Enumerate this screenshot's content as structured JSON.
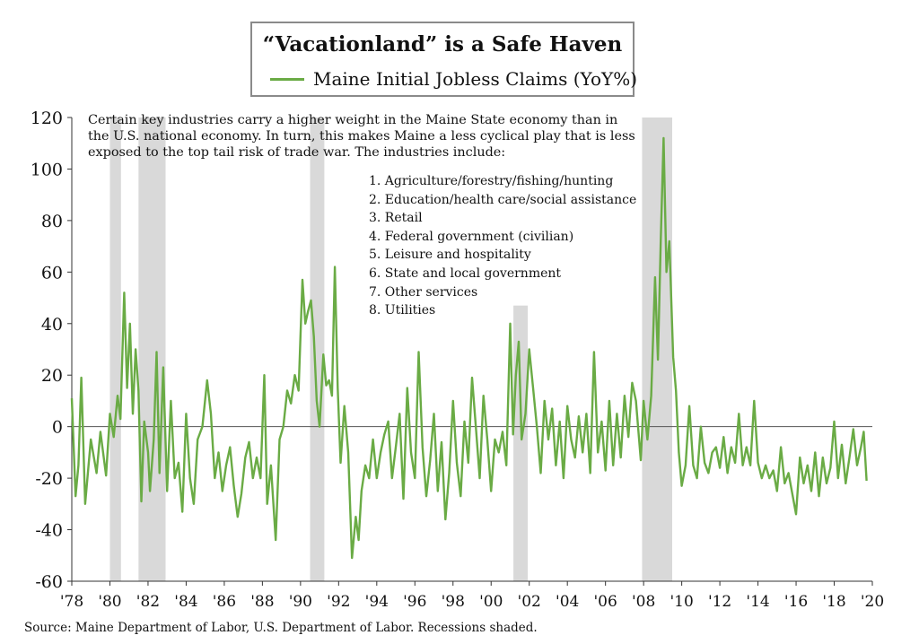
{
  "title": "“Vacationland” is a Safe Haven",
  "note": "Certain key industries carry a higher weight in the Maine State economy than in the U.S. national economy. In turn, this makes Maine a less cyclical play that is less exposed to the top tail risk of trade war.  The industries include:",
  "industries": [
    "1. Agriculture/forestry/fishing/hunting",
    "2. Education/health care/social assistance",
    "3. Retail",
    "4. Federal government (civilian)",
    "5. Leisure and hospitality",
    "6. State and local government",
    "7. Other services",
    "8. Utilities"
  ],
  "source": "Source: Maine Department of Labor, U.S. Department of Labor. Recessions shaded.",
  "colors": {
    "line": "#6aab45",
    "recession": "#d9d9d9",
    "axis": "#555555"
  },
  "chart_data": {
    "type": "line",
    "title": "“Vacationland” is a Safe Haven",
    "xlabel": "",
    "ylabel": "",
    "xlim": [
      1978,
      2020
    ],
    "ylim": [
      -60,
      120
    ],
    "yticks": [
      -60,
      -40,
      -20,
      0,
      20,
      40,
      60,
      80,
      100,
      120
    ],
    "xticks": [
      {
        "value": 1978,
        "label": "'78"
      },
      {
        "value": 1980,
        "label": "'80"
      },
      {
        "value": 1982,
        "label": "'82"
      },
      {
        "value": 1984,
        "label": "'84"
      },
      {
        "value": 1986,
        "label": "'86"
      },
      {
        "value": 1988,
        "label": "'88"
      },
      {
        "value": 1990,
        "label": "'90"
      },
      {
        "value": 1992,
        "label": "'92"
      },
      {
        "value": 1994,
        "label": "'94"
      },
      {
        "value": 1996,
        "label": "'96"
      },
      {
        "value": 1998,
        "label": "'98"
      },
      {
        "value": 2000,
        "label": "'00"
      },
      {
        "value": 2002,
        "label": "'02"
      },
      {
        "value": 2004,
        "label": "'04"
      },
      {
        "value": 2006,
        "label": "'06"
      },
      {
        "value": 2008,
        "label": "'08"
      },
      {
        "value": 2010,
        "label": "'10"
      },
      {
        "value": 2012,
        "label": "'12"
      },
      {
        "value": 2014,
        "label": "'14"
      },
      {
        "value": 2016,
        "label": "'16"
      },
      {
        "value": 2018,
        "label": "'18"
      },
      {
        "value": 2020,
        "label": "'20"
      }
    ],
    "recessions": [
      {
        "start": 1980.0,
        "end": 1980.58,
        "top": 120
      },
      {
        "start": 1981.5,
        "end": 1982.92,
        "top": 120
      },
      {
        "start": 1990.5,
        "end": 1991.25,
        "top": 120
      },
      {
        "start": 2001.17,
        "end": 2001.92,
        "top": 47
      },
      {
        "start": 2007.92,
        "end": 2009.5,
        "top": 120
      }
    ],
    "series": [
      {
        "name": "Maine Initial Jobless Claims (YoY%)",
        "points": [
          [
            1978.0,
            11
          ],
          [
            1978.2,
            -27
          ],
          [
            1978.35,
            -15
          ],
          [
            1978.5,
            19
          ],
          [
            1978.7,
            -30
          ],
          [
            1979.0,
            -5
          ],
          [
            1979.3,
            -18
          ],
          [
            1979.5,
            -2
          ],
          [
            1979.8,
            -19
          ],
          [
            1980.0,
            5
          ],
          [
            1980.2,
            -4
          ],
          [
            1980.4,
            12
          ],
          [
            1980.55,
            3
          ],
          [
            1980.75,
            52
          ],
          [
            1980.9,
            15
          ],
          [
            1981.05,
            40
          ],
          [
            1981.2,
            5
          ],
          [
            1981.35,
            30
          ],
          [
            1981.5,
            14
          ],
          [
            1981.65,
            -29
          ],
          [
            1981.8,
            2
          ],
          [
            1982.0,
            -10
          ],
          [
            1982.1,
            -25
          ],
          [
            1982.3,
            -5
          ],
          [
            1982.45,
            29
          ],
          [
            1982.6,
            -18
          ],
          [
            1982.8,
            23
          ],
          [
            1983.0,
            -25
          ],
          [
            1983.2,
            10
          ],
          [
            1983.4,
            -20
          ],
          [
            1983.6,
            -14
          ],
          [
            1983.8,
            -33
          ],
          [
            1984.0,
            5
          ],
          [
            1984.2,
            -20
          ],
          [
            1984.4,
            -30
          ],
          [
            1984.6,
            -5
          ],
          [
            1984.85,
            0
          ],
          [
            1985.1,
            18
          ],
          [
            1985.3,
            5
          ],
          [
            1985.5,
            -20
          ],
          [
            1985.7,
            -10
          ],
          [
            1985.9,
            -25
          ],
          [
            1986.1,
            -15
          ],
          [
            1986.3,
            -8
          ],
          [
            1986.5,
            -23
          ],
          [
            1986.7,
            -35
          ],
          [
            1986.9,
            -26
          ],
          [
            1987.1,
            -12
          ],
          [
            1987.3,
            -6
          ],
          [
            1987.5,
            -20
          ],
          [
            1987.7,
            -12
          ],
          [
            1987.9,
            -20
          ],
          [
            1988.1,
            20
          ],
          [
            1988.25,
            -30
          ],
          [
            1988.45,
            -15
          ],
          [
            1988.7,
            -44
          ],
          [
            1988.9,
            -5
          ],
          [
            1989.1,
            0
          ],
          [
            1989.3,
            14
          ],
          [
            1989.5,
            9
          ],
          [
            1989.7,
            20
          ],
          [
            1989.9,
            14
          ],
          [
            1990.1,
            57
          ],
          [
            1990.25,
            40
          ],
          [
            1990.4,
            45
          ],
          [
            1990.55,
            49
          ],
          [
            1990.7,
            35
          ],
          [
            1990.85,
            10
          ],
          [
            1991.0,
            0
          ],
          [
            1991.2,
            28
          ],
          [
            1991.35,
            16
          ],
          [
            1991.5,
            18
          ],
          [
            1991.65,
            12
          ],
          [
            1991.8,
            62
          ],
          [
            1991.95,
            15
          ],
          [
            1992.1,
            -14
          ],
          [
            1992.3,
            8
          ],
          [
            1992.5,
            -10
          ],
          [
            1992.7,
            -51
          ],
          [
            1992.9,
            -35
          ],
          [
            1993.05,
            -44
          ],
          [
            1993.2,
            -25
          ],
          [
            1993.4,
            -15
          ],
          [
            1993.6,
            -20
          ],
          [
            1993.8,
            -5
          ],
          [
            1994.0,
            -20
          ],
          [
            1994.2,
            -10
          ],
          [
            1994.4,
            -3
          ],
          [
            1994.6,
            2
          ],
          [
            1994.8,
            -20
          ],
          [
            1995.0,
            -8
          ],
          [
            1995.2,
            5
          ],
          [
            1995.4,
            -28
          ],
          [
            1995.6,
            15
          ],
          [
            1995.8,
            -10
          ],
          [
            1996.0,
            -20
          ],
          [
            1996.2,
            29
          ],
          [
            1996.4,
            -8
          ],
          [
            1996.6,
            -27
          ],
          [
            1996.8,
            -13
          ],
          [
            1997.0,
            5
          ],
          [
            1997.2,
            -25
          ],
          [
            1997.4,
            -6
          ],
          [
            1997.6,
            -36
          ],
          [
            1997.8,
            -18
          ],
          [
            1998.0,
            10
          ],
          [
            1998.2,
            -14
          ],
          [
            1998.4,
            -27
          ],
          [
            1998.6,
            2
          ],
          [
            1998.8,
            -14
          ],
          [
            1999.0,
            19
          ],
          [
            1999.2,
            0
          ],
          [
            1999.4,
            -20
          ],
          [
            1999.6,
            12
          ],
          [
            1999.8,
            -5
          ],
          [
            2000.0,
            -25
          ],
          [
            2000.2,
            -5
          ],
          [
            2000.4,
            -10
          ],
          [
            2000.6,
            -2
          ],
          [
            2000.8,
            -15
          ],
          [
            2001.0,
            40
          ],
          [
            2001.15,
            -3
          ],
          [
            2001.3,
            20
          ],
          [
            2001.45,
            33
          ],
          [
            2001.6,
            -5
          ],
          [
            2001.8,
            5
          ],
          [
            2002.0,
            30
          ],
          [
            2002.2,
            15
          ],
          [
            2002.4,
            0
          ],
          [
            2002.6,
            -18
          ],
          [
            2002.8,
            10
          ],
          [
            2003.0,
            -5
          ],
          [
            2003.2,
            7
          ],
          [
            2003.4,
            -15
          ],
          [
            2003.6,
            2
          ],
          [
            2003.8,
            -20
          ],
          [
            2004.0,
            8
          ],
          [
            2004.2,
            -5
          ],
          [
            2004.4,
            -12
          ],
          [
            2004.6,
            4
          ],
          [
            2004.8,
            -10
          ],
          [
            2005.0,
            5
          ],
          [
            2005.2,
            -18
          ],
          [
            2005.4,
            29
          ],
          [
            2005.6,
            -10
          ],
          [
            2005.8,
            2
          ],
          [
            2006.0,
            -17
          ],
          [
            2006.2,
            10
          ],
          [
            2006.4,
            -15
          ],
          [
            2006.6,
            5
          ],
          [
            2006.8,
            -12
          ],
          [
            2007.0,
            12
          ],
          [
            2007.2,
            -4
          ],
          [
            2007.4,
            17
          ],
          [
            2007.6,
            10
          ],
          [
            2007.85,
            -13
          ],
          [
            2008.0,
            10
          ],
          [
            2008.2,
            -5
          ],
          [
            2008.4,
            12
          ],
          [
            2008.6,
            58
          ],
          [
            2008.75,
            26
          ],
          [
            2008.9,
            73
          ],
          [
            2009.05,
            112
          ],
          [
            2009.2,
            60
          ],
          [
            2009.35,
            72
          ],
          [
            2009.55,
            27
          ],
          [
            2009.7,
            14
          ],
          [
            2009.85,
            -10
          ],
          [
            2010.0,
            -23
          ],
          [
            2010.2,
            -15
          ],
          [
            2010.4,
            8
          ],
          [
            2010.6,
            -15
          ],
          [
            2010.8,
            -20
          ],
          [
            2011.0,
            0
          ],
          [
            2011.2,
            -14
          ],
          [
            2011.4,
            -18
          ],
          [
            2011.6,
            -10
          ],
          [
            2011.8,
            -8
          ],
          [
            2012.0,
            -16
          ],
          [
            2012.2,
            -4
          ],
          [
            2012.4,
            -18
          ],
          [
            2012.6,
            -8
          ],
          [
            2012.8,
            -14
          ],
          [
            2013.0,
            5
          ],
          [
            2013.2,
            -15
          ],
          [
            2013.4,
            -8
          ],
          [
            2013.6,
            -15
          ],
          [
            2013.8,
            10
          ],
          [
            2014.0,
            -14
          ],
          [
            2014.2,
            -20
          ],
          [
            2014.4,
            -15
          ],
          [
            2014.6,
            -20
          ],
          [
            2014.8,
            -17
          ],
          [
            2015.0,
            -25
          ],
          [
            2015.2,
            -8
          ],
          [
            2015.4,
            -22
          ],
          [
            2015.6,
            -18
          ],
          [
            2015.8,
            -26
          ],
          [
            2016.0,
            -34
          ],
          [
            2016.2,
            -12
          ],
          [
            2016.4,
            -22
          ],
          [
            2016.6,
            -15
          ],
          [
            2016.8,
            -25
          ],
          [
            2017.0,
            -10
          ],
          [
            2017.2,
            -27
          ],
          [
            2017.4,
            -12
          ],
          [
            2017.6,
            -22
          ],
          [
            2017.8,
            -16
          ],
          [
            2018.0,
            2
          ],
          [
            2018.2,
            -20
          ],
          [
            2018.4,
            -7
          ],
          [
            2018.6,
            -22
          ],
          [
            2018.8,
            -12
          ],
          [
            2019.0,
            -1
          ],
          [
            2019.2,
            -15
          ],
          [
            2019.4,
            -8
          ],
          [
            2019.55,
            -2
          ],
          [
            2019.7,
            -21
          ]
        ]
      }
    ]
  }
}
